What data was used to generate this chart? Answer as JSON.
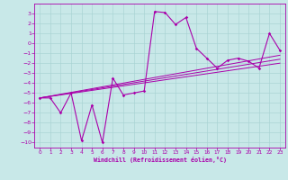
{
  "xlabel": "Windchill (Refroidissement éolien,°C)",
  "bg_color": "#c8e8e8",
  "grid_color": "#aad4d4",
  "line_color": "#aa00aa",
  "xlim": [
    -0.5,
    23.5
  ],
  "ylim": [
    -10.5,
    4.0
  ],
  "xticks": [
    0,
    1,
    2,
    3,
    4,
    5,
    6,
    7,
    8,
    9,
    10,
    11,
    12,
    13,
    14,
    15,
    16,
    17,
    18,
    19,
    20,
    21,
    22,
    23
  ],
  "yticks": [
    3,
    2,
    1,
    0,
    -1,
    -2,
    -3,
    -4,
    -5,
    -6,
    -7,
    -8,
    -9,
    -10
  ],
  "scatter_x": [
    0,
    1,
    2,
    3,
    4,
    5,
    6,
    7,
    8,
    9,
    10,
    11,
    12,
    13,
    14,
    15,
    16,
    17,
    18,
    19,
    20,
    21,
    22,
    23
  ],
  "scatter_y": [
    -5.5,
    -5.5,
    -7.0,
    -5.0,
    -9.8,
    -6.2,
    -10.0,
    -3.5,
    -5.2,
    -5.0,
    -4.8,
    3.2,
    3.1,
    1.9,
    2.6,
    -0.5,
    -1.5,
    -2.5,
    -1.7,
    -1.5,
    -1.8,
    -2.5,
    1.0,
    -0.7
  ],
  "line1_x": [
    0,
    23
  ],
  "line1_y": [
    -5.5,
    -2.0
  ],
  "line2_x": [
    0,
    23
  ],
  "line2_y": [
    -5.5,
    -1.6
  ],
  "line3_x": [
    0,
    23
  ],
  "line3_y": [
    -5.5,
    -1.2
  ]
}
